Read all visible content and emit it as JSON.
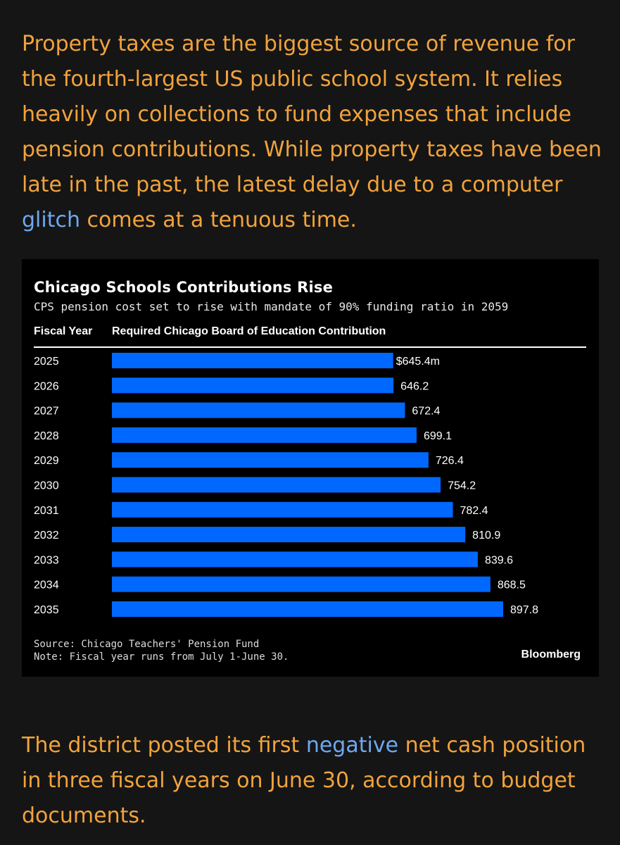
{
  "paragraph1": {
    "before_link": "Property taxes are the biggest source of revenue for the fourth-largest US public school system. It relies heavily on collections to fund expenses that include pension contributions. While property taxes have been late in the past, the latest delay due to a computer ",
    "link": "glitch",
    "after_link": " comes at a tenuous time."
  },
  "paragraph2": {
    "before_link": "The district posted its first ",
    "link": "negative",
    "after_link": " net cash position in three fiscal years on June 30, according to budget documents."
  },
  "chart": {
    "column_year": "Fiscal Year",
    "column_contribution": "Required Chicago Board of Education Contribution",
    "source": "Source: Chicago Teachers' Pension Fund",
    "note": "Note: Fiscal year runs from July 1-June 30.",
    "brand": "Bloomberg"
  },
  "chart_data": {
    "type": "bar",
    "orientation": "horizontal",
    "title": "Chicago Schools Contributions Rise",
    "subtitle": "CPS pension cost set to rise with mandate of 90% funding ratio in 2059",
    "categories": [
      "2025",
      "2026",
      "2027",
      "2028",
      "2029",
      "2030",
      "2031",
      "2032",
      "2033",
      "2034",
      "2035"
    ],
    "values": [
      645.4,
      646.2,
      672.4,
      699.1,
      726.4,
      754.2,
      782.4,
      810.9,
      839.6,
      868.5,
      897.8
    ],
    "value_labels": [
      "$645.4m",
      "646.2",
      "672.4",
      "699.1",
      "726.4",
      "754.2",
      "782.4",
      "810.9",
      "839.6",
      "868.5",
      "897.8"
    ],
    "xlim": [
      0,
      897.8
    ],
    "bar_color": "#0068ff",
    "grid": false
  }
}
